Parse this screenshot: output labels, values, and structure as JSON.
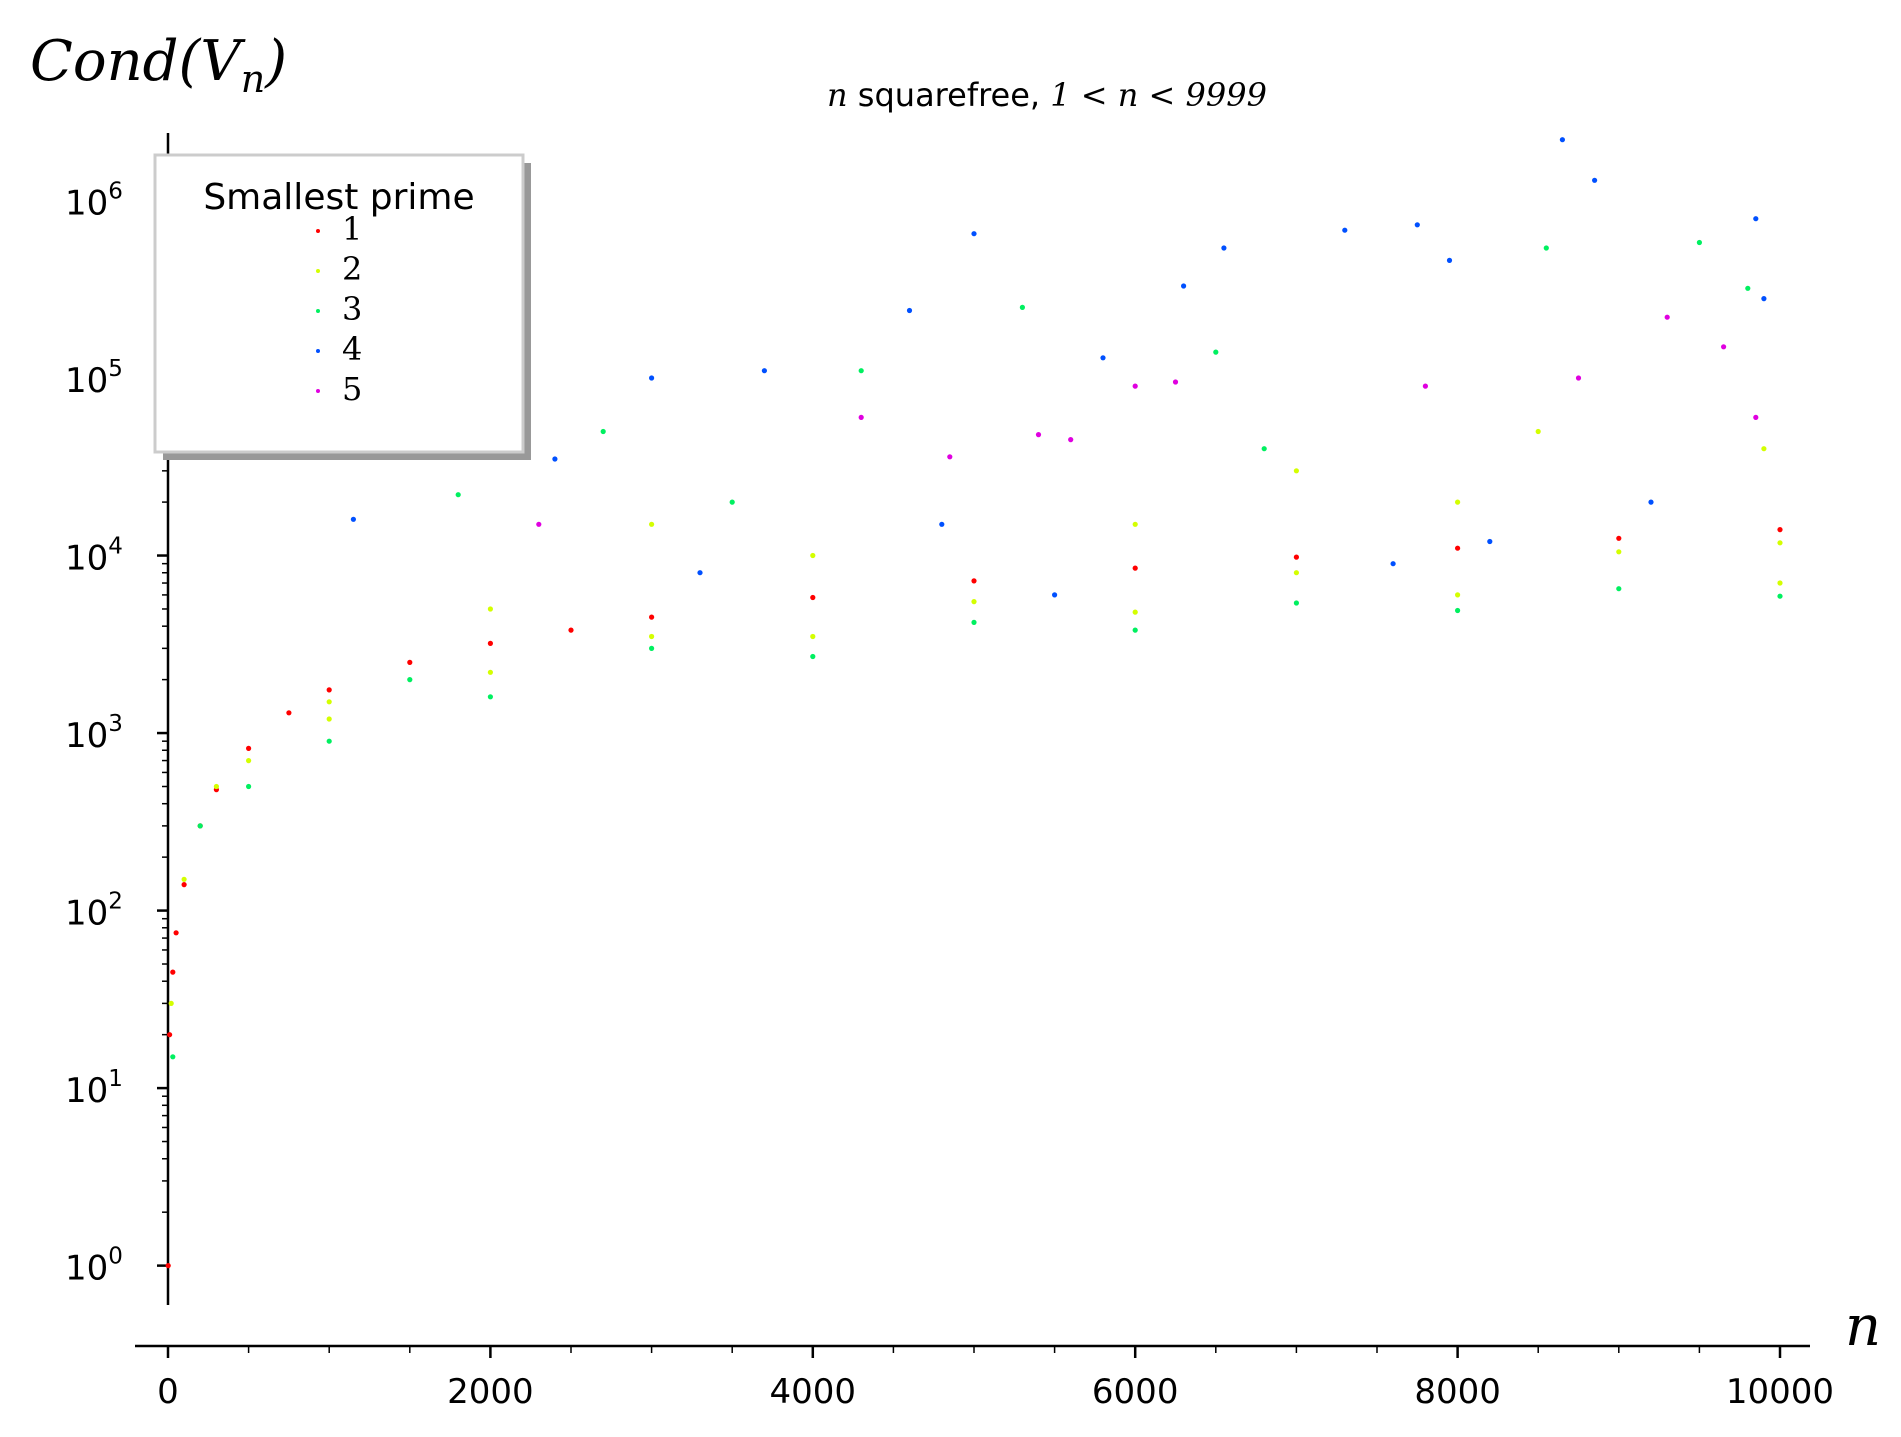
{
  "chart_data": {
    "type": "scatter",
    "title": "n squarefree, 1 < n < 9999",
    "title_parts": {
      "var": "n",
      "text": " squarefree, ",
      "range": "1 < n < 9999"
    },
    "ylabel": "Cond(V_n)",
    "ylabel_parts": {
      "main": "Cond(V",
      "sub": "n",
      "close": ")"
    },
    "xlabel": "n",
    "x_scale": "linear",
    "y_scale": "log",
    "xlim": [
      0,
      10000
    ],
    "ylim": [
      0.6,
      2400000
    ],
    "x_ticks": [
      {
        "value": 0,
        "label": "0"
      },
      {
        "value": 2000,
        "label": "2000"
      },
      {
        "value": 4000,
        "label": "4000"
      },
      {
        "value": 6000,
        "label": "6000"
      },
      {
        "value": 8000,
        "label": "8000"
      },
      {
        "value": 10000,
        "label": "10000"
      }
    ],
    "y_ticks": [
      {
        "value": 1,
        "base": "10",
        "exp": "0"
      },
      {
        "value": 10,
        "base": "10",
        "exp": "1"
      },
      {
        "value": 100,
        "base": "10",
        "exp": "2"
      },
      {
        "value": 1000,
        "base": "10",
        "exp": "3"
      },
      {
        "value": 10000,
        "base": "10",
        "exp": "4"
      },
      {
        "value": 100000,
        "base": "10",
        "exp": "5"
      },
      {
        "value": 1000000,
        "base": "10",
        "exp": "6"
      }
    ],
    "grid": false,
    "legend": {
      "title": "Smallest prime",
      "placement": "top-left"
    },
    "series": [
      {
        "name": "1",
        "color": "#ff0000",
        "points": [
          [
            1,
            1
          ],
          [
            10,
            20
          ],
          [
            30,
            45
          ],
          [
            50,
            75
          ],
          [
            100,
            140
          ],
          [
            200,
            300
          ],
          [
            300,
            480
          ],
          [
            500,
            820
          ],
          [
            750,
            1300
          ],
          [
            1000,
            1750
          ],
          [
            1500,
            2500
          ],
          [
            2000,
            3200
          ],
          [
            2500,
            3800
          ],
          [
            3000,
            4500
          ],
          [
            4000,
            5800
          ],
          [
            5000,
            7200
          ],
          [
            6000,
            8500
          ],
          [
            7000,
            9800
          ],
          [
            8000,
            11000
          ],
          [
            9000,
            12500
          ],
          [
            10000,
            14000
          ]
        ]
      },
      {
        "name": "2",
        "color": "#d4ff00",
        "points": [
          [
            20,
            30
          ],
          [
            100,
            150
          ],
          [
            300,
            500
          ],
          [
            500,
            700
          ],
          [
            1000,
            1200
          ],
          [
            2000,
            2200
          ],
          [
            4000,
            3500
          ],
          [
            6000,
            4800
          ],
          [
            8000,
            6000
          ],
          [
            10000,
            7000
          ],
          [
            1000,
            1500
          ],
          [
            3000,
            3500
          ],
          [
            5000,
            5500
          ],
          [
            7000,
            8000
          ],
          [
            9000,
            10500
          ],
          [
            10000,
            11800
          ],
          [
            2000,
            5000
          ],
          [
            4000,
            10000
          ],
          [
            6000,
            15000
          ],
          [
            8000,
            20000
          ],
          [
            9900,
            40000
          ],
          [
            3000,
            15000
          ],
          [
            7000,
            30000
          ],
          [
            8500,
            50000
          ]
        ]
      },
      {
        "name": "3",
        "color": "#00f060",
        "points": [
          [
            30,
            15
          ],
          [
            200,
            300
          ],
          [
            500,
            500
          ],
          [
            1000,
            900
          ],
          [
            2000,
            1600
          ],
          [
            4000,
            2700
          ],
          [
            6000,
            3800
          ],
          [
            8000,
            4900
          ],
          [
            10000,
            5900
          ],
          [
            1500,
            2000
          ],
          [
            3000,
            3000
          ],
          [
            5000,
            4200
          ],
          [
            7000,
            5400
          ],
          [
            9000,
            6500
          ],
          [
            2700,
            50000
          ],
          [
            4300,
            110000
          ],
          [
            5300,
            250000
          ],
          [
            6500,
            140000
          ],
          [
            8550,
            540000
          ],
          [
            9500,
            580000
          ],
          [
            9800,
            320000
          ],
          [
            1800,
            22000
          ],
          [
            3500,
            20000
          ],
          [
            6800,
            40000
          ]
        ]
      },
      {
        "name": "4",
        "color": "#0050ff",
        "points": [
          [
            1150,
            16000
          ],
          [
            2400,
            35000
          ],
          [
            3000,
            100000
          ],
          [
            3700,
            110000
          ],
          [
            4600,
            240000
          ],
          [
            5000,
            650000
          ],
          [
            5800,
            130000
          ],
          [
            6300,
            330000
          ],
          [
            6550,
            540000
          ],
          [
            7300,
            680000
          ],
          [
            7750,
            730000
          ],
          [
            7950,
            460000
          ],
          [
            8650,
            2200000
          ],
          [
            8850,
            1300000
          ],
          [
            9850,
            790000
          ],
          [
            9900,
            280000
          ],
          [
            5500,
            6000
          ],
          [
            7600,
            9000
          ],
          [
            8200,
            12000
          ],
          [
            9200,
            20000
          ],
          [
            3300,
            8000
          ],
          [
            4800,
            15000
          ]
        ]
      },
      {
        "name": "5",
        "color": "#e000e0",
        "points": [
          [
            2300,
            15000
          ],
          [
            4300,
            60000
          ],
          [
            4850,
            36000
          ],
          [
            5600,
            45000
          ],
          [
            6000,
            90000
          ],
          [
            6250,
            95000
          ],
          [
            7800,
            90000
          ],
          [
            8750,
            100000
          ],
          [
            9300,
            220000
          ],
          [
            9650,
            150000
          ],
          [
            9850,
            60000
          ],
          [
            5400,
            48000
          ]
        ]
      }
    ]
  }
}
